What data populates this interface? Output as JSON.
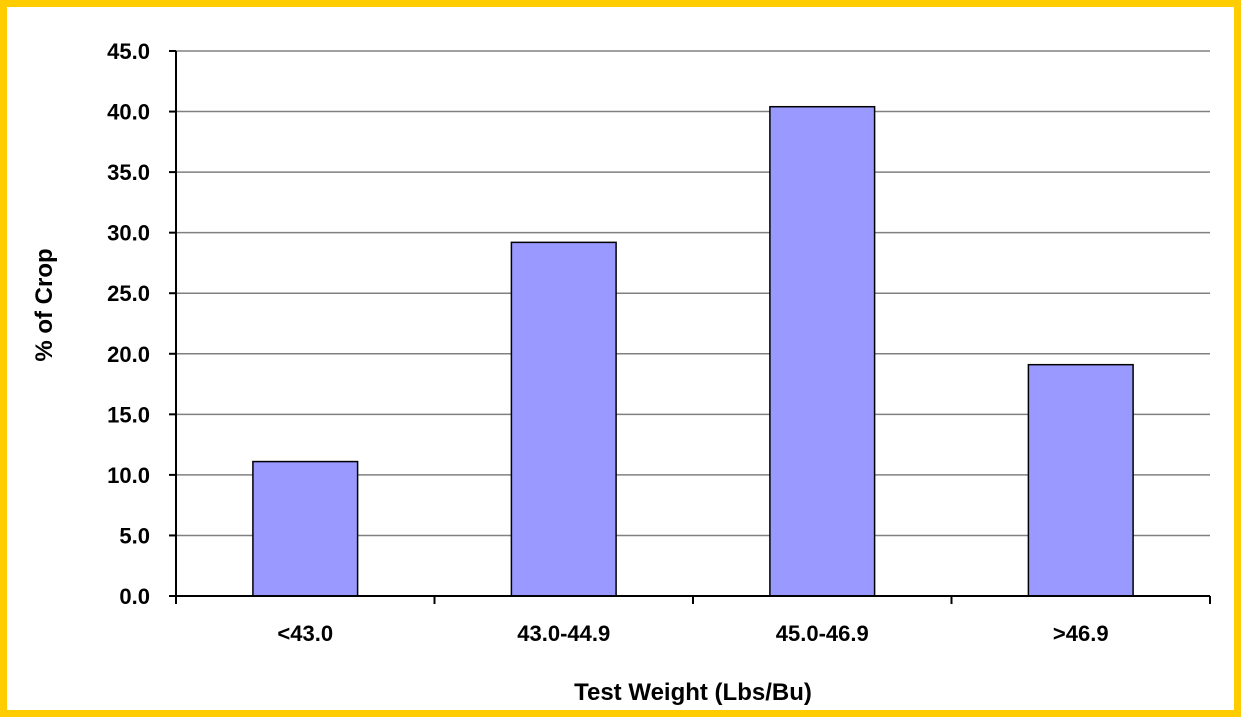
{
  "chart_data": {
    "type": "bar",
    "categories": [
      "<43.0",
      "43.0-44.9",
      "45.0-46.9",
      ">46.9"
    ],
    "values": [
      11.1,
      29.2,
      40.4,
      19.1
    ],
    "title": "",
    "xlabel": "Test Weight (Lbs/Bu)",
    "ylabel": "% of Crop",
    "ylim": [
      0,
      45
    ],
    "ytick_step": 5,
    "ytick_labels": [
      "0.0",
      "5.0",
      "10.0",
      "15.0",
      "20.0",
      "25.0",
      "30.0",
      "35.0",
      "40.0",
      "45.0"
    ],
    "grid": true,
    "legend": "none",
    "colors": {
      "bar": "#9999FF",
      "bar_edge": "#000000",
      "grid": "#808080",
      "frame": "#FFCC00"
    }
  }
}
